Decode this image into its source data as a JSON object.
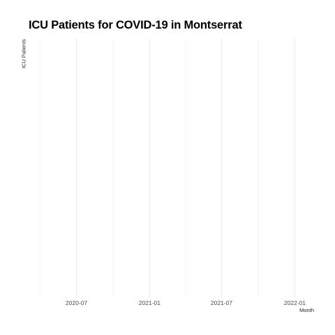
{
  "chart_data": {
    "type": "line",
    "title": "ICU Patients for COVID-19 in Montserrat",
    "xlabel": "Month",
    "ylabel": "ICU Patients",
    "x_axis_type": "date",
    "xlim": [
      "2020-03-01",
      "2022-03-15"
    ],
    "x_tick_labels": [
      {
        "date": "2020-07-01",
        "label": "2020-07"
      },
      {
        "date": "2021-01-01",
        "label": "2021-01"
      },
      {
        "date": "2021-07-01",
        "label": "2021-07"
      },
      {
        "date": "2022-01-01",
        "label": "2022-01"
      }
    ],
    "x_minor_gridlines": [
      "2020-04-01",
      "2020-10-01",
      "2021-04-01",
      "2021-10-01"
    ],
    "series": [],
    "grid": true,
    "grid_color": "#ebebeb",
    "legend": "none"
  }
}
